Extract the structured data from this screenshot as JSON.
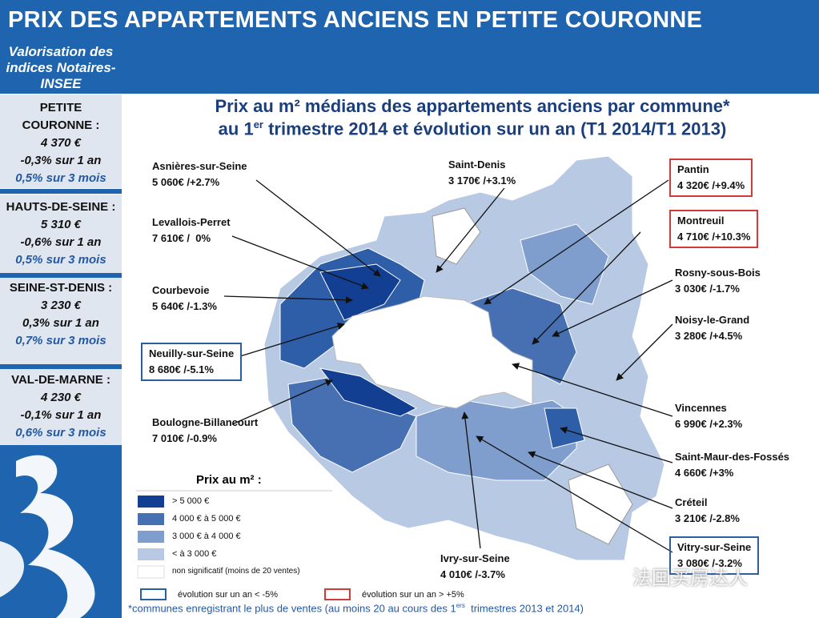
{
  "header": {
    "title": "PRIX DES APPARTEMENTS ANCIENS EN PETITE COURONNE"
  },
  "sidebar": {
    "subtitle": "Valorisation des indices Notaires-INSEE",
    "regions": [
      {
        "name": "PETITE COURONNE :",
        "price": "4 370 €",
        "year": "-0,3% sur 1 an",
        "months": "0,5% sur 3 mois"
      },
      {
        "name": "HAUTS-DE-SEINE :",
        "price": "5 310 €",
        "year": "-0,6% sur 1 an",
        "months": "0,5% sur 3 mois"
      },
      {
        "name": "SEINE-ST-DENIS :",
        "price": "3 230 €",
        "year": "0,3% sur 1 an",
        "months": "0,7% sur 3 mois"
      },
      {
        "name": "VAL-DE-MARNE :",
        "price": "4 230 €",
        "year": "-0,1% sur 1 an",
        "months": "0,6% sur 3 mois"
      }
    ]
  },
  "map": {
    "title_line1": "Prix au m² médians des appartements anciens par commune*",
    "title_line2": {
      "before": "au 1",
      "sup": "er",
      "after": " trimestre 2014 et évolution sur un an (T1 2014/T1 2013)"
    },
    "communes": [
      {
        "name": "Asnières-sur-Seine",
        "value": "5 060€ /+2.7%"
      },
      {
        "name": "Levallois-Perret",
        "value": "7 610€ /  0%"
      },
      {
        "name": "Courbevoie",
        "value": "5 640€ /-1.3%"
      },
      {
        "name": "Neuilly-sur-Seine",
        "value": "8 680€ /-5.1%"
      },
      {
        "name": "Boulogne-Billancourt",
        "value": "7 010€ /-0.9%"
      },
      {
        "name": "Saint-Denis",
        "value": "3 170€ /+3.1%"
      },
      {
        "name": "Pantin",
        "value": "4 320€ /+9.4%"
      },
      {
        "name": "Montreuil",
        "value": "4 710€ /+10.3%"
      },
      {
        "name": "Rosny-sous-Bois",
        "value": "3 030€ /-1.7%"
      },
      {
        "name": "Noisy-le-Grand",
        "value": "3 280€ /+4.5%"
      },
      {
        "name": "Vincennes",
        "value": "6 990€ /+2.3%"
      },
      {
        "name": "Saint-Maur-des-Fossés",
        "value": "4 660€ /+3%"
      },
      {
        "name": "Créteil",
        "value": "3 210€ /-2.8%"
      },
      {
        "name": "Vitry-sur-Seine",
        "value": "3 080€ /-3.2%"
      },
      {
        "name": "Ivry-sur-Seine",
        "value": "4 010€ /-3.7%"
      }
    ],
    "legend": {
      "title": "Prix au m² :",
      "items": [
        "> 5 000 €",
        "4 000 € à 5 000 €",
        "3 000 € à 4 000 €",
        "< à 3 000 €",
        "non significatif (moins de 20 ventes)"
      ],
      "evolution": [
        "évolution sur un an < -5%",
        "évolution sur un an > +5%"
      ]
    },
    "footnote": {
      "before": "*communes enregistrant le plus de ventes (au moins 20 au cours des 1",
      "sup": "ers",
      "after": "  trimestres 2013 et 2014)"
    }
  },
  "watermark": "法国买房达人"
}
